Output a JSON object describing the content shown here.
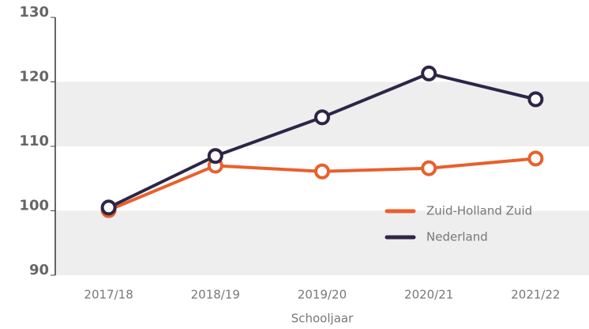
{
  "chart_data": {
    "type": "line",
    "x_label": "Schooljaar",
    "categories": [
      "2017/18",
      "2018/19",
      "2019/20",
      "2020/21",
      "2021/22"
    ],
    "series": [
      {
        "name": "Zuid-Holland Zuid",
        "color": "#e8602c",
        "values": [
          100.1,
          107.0,
          106.1,
          106.6,
          108.1
        ]
      },
      {
        "name": "Nederland",
        "color": "#2e2546",
        "values": [
          100.5,
          108.5,
          114.5,
          121.3,
          117.3
        ]
      }
    ],
    "ylim": [
      90,
      130
    ],
    "yticks": [
      90,
      100,
      110,
      120,
      130
    ],
    "grid": true,
    "legend": "lower right"
  }
}
